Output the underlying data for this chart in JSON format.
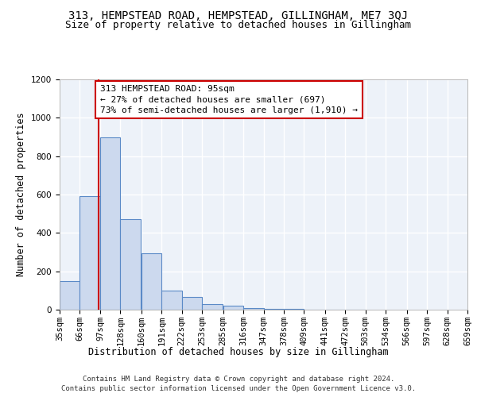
{
  "title": "313, HEMPSTEAD ROAD, HEMPSTEAD, GILLINGHAM, ME7 3QJ",
  "subtitle": "Size of property relative to detached houses in Gillingham",
  "xlabel": "Distribution of detached houses by size in Gillingham",
  "ylabel": "Number of detached properties",
  "bin_edges": [
    35,
    66,
    97,
    128,
    160,
    191,
    222,
    253,
    285,
    316,
    347,
    378,
    409,
    441,
    472,
    503,
    534,
    566,
    597,
    628,
    659
  ],
  "bar_heights": [
    150,
    590,
    900,
    470,
    295,
    100,
    65,
    30,
    20,
    10,
    5,
    3,
    2,
    1,
    1,
    0,
    0,
    0,
    0,
    0
  ],
  "bar_color": "#ccd9ee",
  "bar_edge_color": "#5b8ac7",
  "red_line_x": 95,
  "annotation_text": "313 HEMPSTEAD ROAD: 95sqm\n← 27% of detached houses are smaller (697)\n73% of semi-detached houses are larger (1,910) →",
  "annotation_box_color": "#ffffff",
  "annotation_box_edge_color": "#cc0000",
  "ylim": [
    0,
    1200
  ],
  "yticks": [
    0,
    200,
    400,
    600,
    800,
    1000,
    1200
  ],
  "footer_line1": "Contains HM Land Registry data © Crown copyright and database right 2024.",
  "footer_line2": "Contains public sector information licensed under the Open Government Licence v3.0.",
  "background_color": "#edf2f9",
  "grid_color": "#ffffff",
  "title_fontsize": 10,
  "subtitle_fontsize": 9,
  "axis_label_fontsize": 8.5,
  "tick_fontsize": 7.5,
  "annotation_fontsize": 8,
  "footer_fontsize": 6.5
}
